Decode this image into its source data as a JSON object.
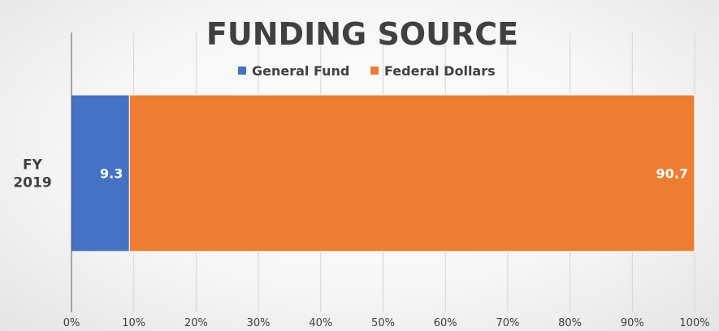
{
  "chart_data": {
    "type": "bar",
    "orientation": "horizontal",
    "stacked": "percent",
    "title": "FUNDING SOURCE",
    "categories": [
      "FY 2019"
    ],
    "category_label_lines": [
      [
        "FY",
        "2019"
      ]
    ],
    "series": [
      {
        "name": "General Fund",
        "values": [
          9.3
        ],
        "color": "#4472c4"
      },
      {
        "name": "Federal Dollars",
        "values": [
          90.7
        ],
        "color": "#ed7d31"
      }
    ],
    "data_labels": [
      "9.3",
      "90.7"
    ],
    "xlim": [
      0,
      100
    ],
    "x_ticks": [
      "0%",
      "10%",
      "20%",
      "30%",
      "40%",
      "50%",
      "60%",
      "70%",
      "80%",
      "90%",
      "100%"
    ],
    "grid": true,
    "legend_position": "top"
  }
}
